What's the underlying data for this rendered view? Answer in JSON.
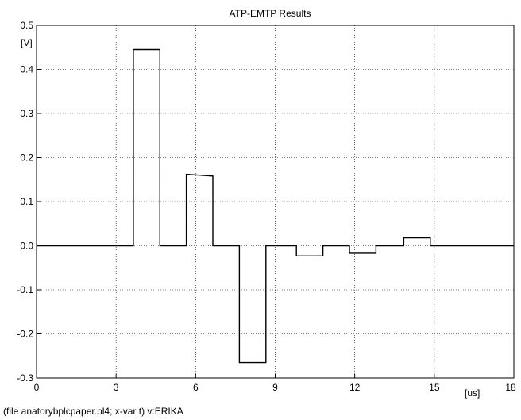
{
  "chart_data": {
    "type": "line",
    "title": "ATP-EMTP Results",
    "ylabel": "[V]",
    "xlabel": "[us]",
    "xlim": [
      0,
      18
    ],
    "ylim": [
      -0.3,
      0.5
    ],
    "xticks": [
      0,
      3,
      6,
      9,
      12,
      15,
      18
    ],
    "xtick_labels": [
      "0",
      "3",
      "6",
      "9",
      "12",
      "15",
      "18"
    ],
    "yticks": [
      0.5,
      0.4,
      0.3,
      0.2,
      0.1,
      0.0,
      -0.1,
      -0.2,
      -0.3
    ],
    "ytick_labels": [
      "0.5",
      "0.4",
      "0.3",
      "0.2",
      "0.1",
      "0.0",
      "-0.1",
      "-0.2",
      "-0.3"
    ],
    "grid": true,
    "series": [
      {
        "color": "#000000",
        "x": [
          0,
          3.65,
          3.65,
          4.65,
          4.65,
          5.65,
          5.65,
          6.65,
          6.65,
          7.65,
          7.65,
          8.65,
          8.65,
          9.8,
          9.8,
          10.8,
          10.8,
          11.8,
          11.8,
          12.8,
          12.8,
          13.85,
          13.85,
          14.85,
          14.85,
          18
        ],
        "y": [
          0,
          0,
          0.445,
          0.445,
          0,
          0,
          0.162,
          0.158,
          0,
          0,
          -0.265,
          -0.265,
          0,
          0,
          -0.023,
          -0.023,
          0,
          0,
          -0.017,
          -0.017,
          0,
          0,
          0.018,
          0.018,
          0,
          0
        ]
      }
    ],
    "footer": "(file anatorybplcpaper.pl4; x-var t)  v:ERIKA"
  }
}
